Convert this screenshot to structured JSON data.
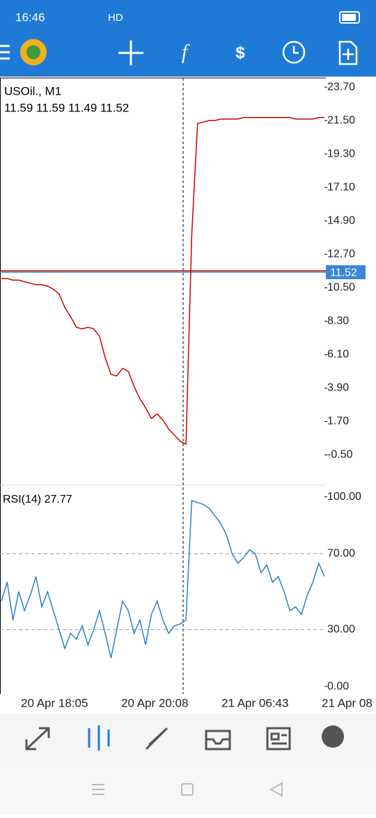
{
  "status_bar": {
    "time": "16:46",
    "network": "HD"
  },
  "chart_data": [
    {
      "type": "line",
      "title": "USOil., M1",
      "subtitle": "11.59 11.59 11.49 11.52",
      "series": [
        {
          "color": "#cc0000",
          "values": [
            11.1,
            11.1,
            11.0,
            11.0,
            10.9,
            10.8,
            10.7,
            10.7,
            10.6,
            10.4,
            10.1,
            9.2,
            8.6,
            7.9,
            7.8,
            7.9,
            7.8,
            7.3,
            5.9,
            4.8,
            4.7,
            5.2,
            5.0,
            4.0,
            3.2,
            2.6,
            1.9,
            2.2,
            1.8,
            1.2,
            0.8,
            0.4,
            0.2,
            14.0,
            21.3,
            21.4,
            21.5,
            21.5,
            21.6,
            21.6,
            21.6,
            21.6,
            21.7,
            21.7,
            21.7,
            21.7,
            21.7,
            21.7,
            21.7,
            21.7,
            21.7,
            21.6,
            21.6,
            21.6,
            21.6,
            21.7,
            21.7
          ]
        }
      ],
      "ylim": [
        -2.4,
        24.3
      ],
      "yticks": [
        {
          "value": 23.7,
          "label": "23.70"
        },
        {
          "value": 21.5,
          "label": "21.50"
        },
        {
          "value": 19.3,
          "label": "19.30"
        },
        {
          "value": 17.1,
          "label": "17.10"
        },
        {
          "value": 14.9,
          "label": "14.90"
        },
        {
          "value": 12.7,
          "label": "12.70"
        },
        {
          "value": 10.5,
          "label": "10.50"
        },
        {
          "value": 8.3,
          "label": "8.30"
        },
        {
          "value": 6.1,
          "label": "6.10"
        },
        {
          "value": 3.9,
          "label": "3.90"
        },
        {
          "value": 1.7,
          "label": "1.70"
        },
        {
          "value": -0.5,
          "label": "-0.50"
        }
      ],
      "current_price": 11.52,
      "x_labels": [
        "20 Apr 18:05",
        "20 Apr 20:08",
        "21 Apr 06:43",
        "21 Apr 08"
      ]
    },
    {
      "type": "line",
      "title": "RSI(14) 27.77",
      "series": [
        {
          "color": "#2a7fc9",
          "values": [
            45,
            55,
            35,
            50,
            40,
            48,
            58,
            42,
            50,
            40,
            30,
            20,
            28,
            25,
            32,
            22,
            30,
            40,
            28,
            15,
            30,
            45,
            40,
            28,
            35,
            22,
            38,
            45,
            35,
            28,
            32,
            33,
            35,
            98,
            97,
            96,
            94,
            90,
            86,
            80,
            70,
            65,
            68,
            72,
            70,
            60,
            64,
            55,
            58,
            50,
            40,
            42,
            38,
            48,
            55,
            65,
            58
          ]
        }
      ],
      "ylim": [
        -4,
        105
      ],
      "yticks": [
        {
          "value": 0,
          "label": "0.00"
        },
        {
          "value": 100,
          "label": "100.00"
        }
      ],
      "levels": [
        {
          "value": 70,
          "label": "70.00"
        },
        {
          "value": 30,
          "label": "30.00"
        }
      ]
    }
  ]
}
